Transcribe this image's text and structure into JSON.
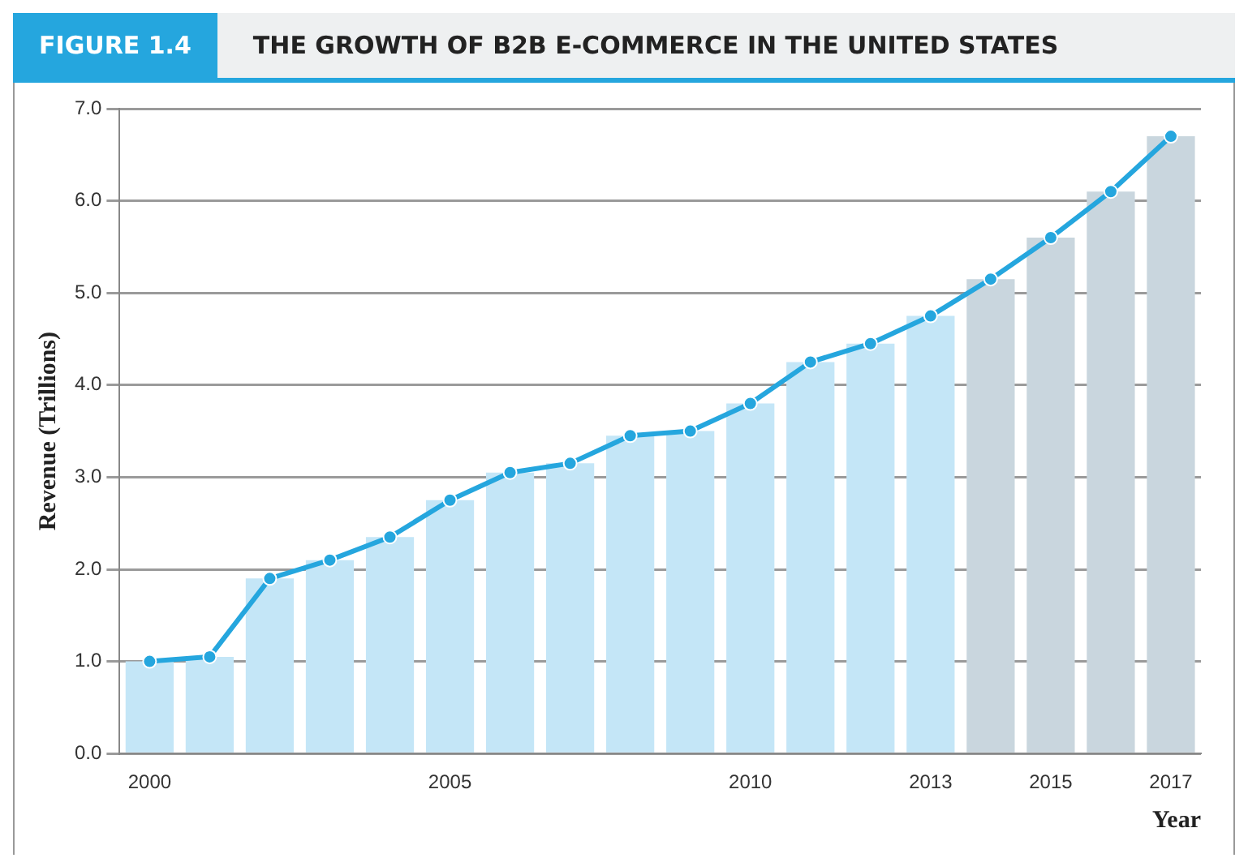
{
  "chart_data": {
    "type": "bar",
    "title": "THE GROWTH OF B2B E-COMMERCE IN THE UNITED STATES",
    "annotations": [
      "FIGURE 1.4"
    ],
    "xlabel": "Year",
    "ylabel": "Revenue (Trillions)",
    "categories": [
      "2000",
      null,
      null,
      null,
      null,
      "2005",
      null,
      null,
      null,
      null,
      "2010",
      null,
      null,
      "2013",
      null,
      "2015",
      null,
      "2017"
    ],
    "series": [
      {
        "colors": [
          "#c4e6f7",
          "#c4e6f7",
          "#c4e6f7",
          "#c4e6f7",
          "#c4e6f7",
          "#c4e6f7",
          "#c4e6f7",
          "#c4e6f7",
          "#c4e6f7",
          "#c4e6f7",
          "#c4e6f7",
          "#c4e6f7",
          "#c4e6f7",
          "#c4e6f7",
          "#c9d6de",
          "#c9d6de",
          "#c9d6de",
          "#c9d6de"
        ],
        "values": [
          1.0,
          1.05,
          1.9,
          2.1,
          2.35,
          2.75,
          3.05,
          3.15,
          3.45,
          3.5,
          3.8,
          4.25,
          4.45,
          4.75,
          5.15,
          5.6,
          6.1,
          6.7
        ]
      },
      {
        "type": "line",
        "color": "#25a6de",
        "values": [
          1.0,
          1.05,
          1.9,
          2.1,
          2.35,
          2.75,
          3.05,
          3.15,
          3.45,
          3.5,
          3.8,
          4.25,
          4.45,
          4.75,
          5.15,
          5.6,
          6.1,
          6.7
        ]
      }
    ],
    "ylim": [
      0,
      7
    ],
    "yticks": [
      {
        "value": 0,
        "label": "0.0"
      },
      {
        "value": 1,
        "label": "1.0"
      },
      {
        "value": 2,
        "label": "2.0"
      },
      {
        "value": 3,
        "label": "3.0"
      },
      {
        "value": 4,
        "label": "4.0"
      },
      {
        "value": 5,
        "label": "5.0"
      },
      {
        "value": 6,
        "label": "6.0"
      },
      {
        "value": 7,
        "label": "7.0"
      }
    ],
    "grid": "y",
    "marker": "circle",
    "line_style": "solid"
  }
}
